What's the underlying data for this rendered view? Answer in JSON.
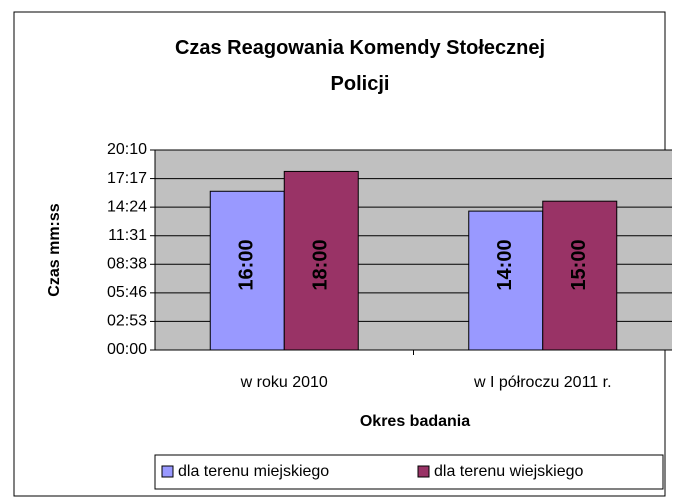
{
  "chart_data": {
    "type": "bar",
    "title": "Czas Reagowania Komendy Stołecznej Policji",
    "x_label": "Okres badania",
    "y_label": "Czas mm:ss",
    "categories": [
      "w roku 2010",
      "w I półroczu 2011 r."
    ],
    "series": [
      {
        "name": "dla terenu miejskiego",
        "color": "#9999ff",
        "values": [
          16,
          14
        ],
        "value_labels": [
          "16:00",
          "14:00"
        ]
      },
      {
        "name": "dla terenu wiejskiego",
        "color": "#993366",
        "values": [
          18,
          15
        ],
        "value_labels": [
          "18:00",
          "15:00"
        ]
      }
    ],
    "ylim": [
      0,
      20.16
    ],
    "yticks": [
      {
        "value": 0,
        "label": "00:00"
      },
      {
        "value": 2.88,
        "label": "02:53"
      },
      {
        "value": 5.76,
        "label": "05:46"
      },
      {
        "value": 8.64,
        "label": "08:38"
      },
      {
        "value": 11.52,
        "label": "11:31"
      },
      {
        "value": 14.4,
        "label": "14:24"
      },
      {
        "value": 17.28,
        "label": "17:17"
      },
      {
        "value": 20.16,
        "label": "20:10"
      }
    ],
    "grid": true,
    "legend": "bottom"
  }
}
